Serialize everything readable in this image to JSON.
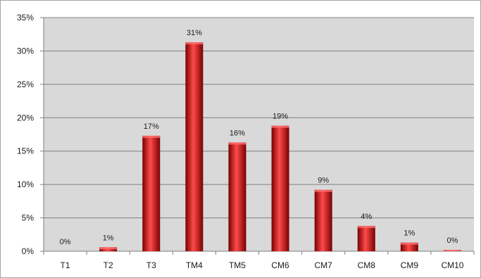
{
  "chart_data": {
    "type": "bar",
    "categories": [
      "T1",
      "T2",
      "T3",
      "TM4",
      "TM5",
      "CM6",
      "CM7",
      "CM8",
      "CM9",
      "CM10"
    ],
    "values": [
      0.0,
      0.6,
      17.3,
      31.3,
      16.3,
      18.8,
      9.2,
      3.8,
      1.3,
      0.2
    ],
    "data_labels": [
      "0%",
      "1%",
      "17%",
      "31%",
      "16%",
      "19%",
      "9%",
      "4%",
      "1%",
      "0%"
    ],
    "y_ticks": [
      0,
      5,
      10,
      15,
      20,
      25,
      30,
      35
    ],
    "y_tick_labels": [
      "0%",
      "5%",
      "10%",
      "15%",
      "20%",
      "25%",
      "30%",
      "35%"
    ],
    "ylim": [
      0,
      35
    ],
    "title": "",
    "xlabel": "",
    "ylabel": "",
    "grid": true,
    "legend": "none",
    "colors": {
      "bar": "#cc0000",
      "bar_dark": "#7a0000",
      "bar_light": "#ff4a4a",
      "plot_bg": "#d9d9d9",
      "grid": "#7f7f7f"
    }
  }
}
